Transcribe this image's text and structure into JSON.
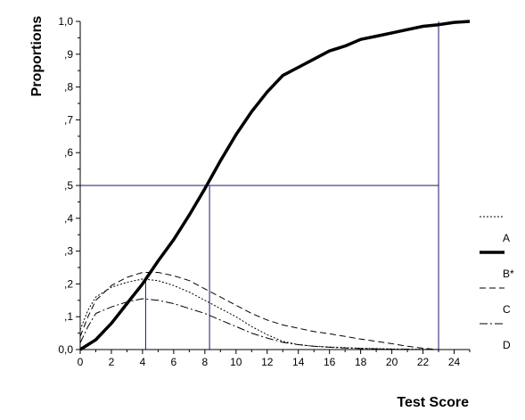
{
  "chart_data": {
    "type": "line",
    "xlabel": "Test Score",
    "ylabel": "Proportions",
    "xlim": [
      0,
      25
    ],
    "ylim": [
      0,
      1
    ],
    "x_ticks_major": [
      0,
      2,
      4,
      6,
      8,
      10,
      12,
      14,
      16,
      18,
      20,
      22,
      24
    ],
    "y_ticks": [
      0,
      0.1,
      0.2,
      0.3,
      0.4,
      0.5,
      0.6,
      0.7,
      0.8,
      0.9,
      1.0
    ],
    "y_tick_labels": [
      "0,0",
      ",1",
      ",2",
      ",3",
      ",4",
      ",5",
      ",6",
      ",7",
      ",8",
      ",9",
      "1,0"
    ],
    "grid": false,
    "legend_position": "right",
    "series": [
      {
        "name": "A",
        "style": "dotted",
        "color": "#000000",
        "x": [
          0,
          0.5,
          1,
          2,
          3,
          4,
          5,
          6,
          7,
          8,
          9,
          10,
          11,
          12,
          13,
          14,
          15,
          16,
          17,
          18,
          19,
          20,
          21,
          22,
          23
        ],
        "y": [
          0.06,
          0.12,
          0.16,
          0.19,
          0.205,
          0.215,
          0.21,
          0.195,
          0.175,
          0.15,
          0.125,
          0.1,
          0.07,
          0.045,
          0.025,
          0.015,
          0.01,
          0.008,
          0.006,
          0.004,
          0.003,
          0.002,
          0.001,
          0.001,
          0
        ]
      },
      {
        "name": "B*",
        "style": "solid-thick",
        "color": "#000000",
        "x": [
          0,
          1,
          2,
          3,
          4,
          5,
          6,
          7,
          8,
          9,
          10,
          11,
          12,
          13,
          14,
          15,
          16,
          17,
          18,
          19,
          20,
          21,
          22,
          23,
          24,
          25
        ],
        "y": [
          0,
          0.03,
          0.08,
          0.14,
          0.2,
          0.27,
          0.335,
          0.41,
          0.49,
          0.575,
          0.655,
          0.725,
          0.785,
          0.835,
          0.86,
          0.885,
          0.91,
          0.925,
          0.945,
          0.955,
          0.965,
          0.975,
          0.985,
          0.99,
          0.997,
          1.0
        ]
      },
      {
        "name": "C",
        "style": "dashed",
        "color": "#000000",
        "x": [
          0,
          0.5,
          1,
          2,
          3,
          4,
          5,
          6,
          7,
          8,
          9,
          10,
          11,
          12,
          13,
          14,
          15,
          16,
          17,
          18,
          19,
          20,
          21,
          22,
          23
        ],
        "y": [
          0.04,
          0.1,
          0.15,
          0.195,
          0.22,
          0.235,
          0.235,
          0.225,
          0.21,
          0.185,
          0.16,
          0.135,
          0.11,
          0.09,
          0.075,
          0.065,
          0.055,
          0.048,
          0.04,
          0.032,
          0.025,
          0.018,
          0.01,
          0.004,
          0
        ]
      },
      {
        "name": "D",
        "style": "dash-dot",
        "color": "#000000",
        "x": [
          0,
          0.5,
          1,
          2,
          3,
          4,
          5,
          6,
          7,
          8,
          9,
          10,
          11,
          12,
          13,
          14,
          15,
          16,
          17,
          18,
          19,
          20,
          21,
          22,
          23
        ],
        "y": [
          0.02,
          0.07,
          0.11,
          0.13,
          0.145,
          0.155,
          0.15,
          0.14,
          0.125,
          0.11,
          0.09,
          0.07,
          0.05,
          0.035,
          0.022,
          0.015,
          0.01,
          0.007,
          0.005,
          0.003,
          0.002,
          0.001,
          0.001,
          0,
          0
        ]
      }
    ],
    "reference_lines": {
      "color": "#1a1a6e",
      "horizontal": [
        {
          "y": 0.5,
          "x_from": 0,
          "x_to": 23.0
        }
      ],
      "vertical": [
        {
          "x": 4.2,
          "y_from": 0,
          "y_to": 0.215
        },
        {
          "x": 8.3,
          "y_from": 0,
          "y_to": 0.5
        },
        {
          "x": 23.0,
          "y_from": 0,
          "y_to": 1.0
        }
      ]
    }
  }
}
